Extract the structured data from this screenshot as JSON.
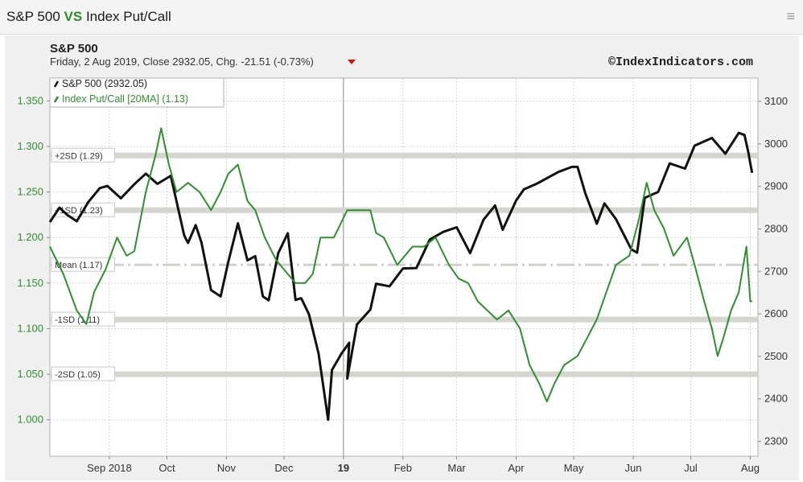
{
  "header": {
    "title_left": "S&P 500",
    "title_vs": "VS",
    "title_right": "Index Put/Call",
    "menu_icon": "hamburger-menu-icon"
  },
  "chart_header": {
    "symbol": "S&P 500",
    "info": "Friday, 2 Aug 2019, Close 2932.05, Chg. -21.51 (-0.73%)",
    "change_icon": "down-triangle-icon",
    "watermark": "©IndexIndicators.com"
  },
  "legend": [
    {
      "label": "S&P 500 (2932.05)",
      "color": "#111111"
    },
    {
      "label": "Index Put/Call [20MA] (1.13)",
      "color": "#2f8f2f"
    }
  ],
  "bands": [
    {
      "label": "+2SD (1.29)",
      "value": 1.29,
      "style": "band"
    },
    {
      "label": "+1SD (1.23)",
      "value": 1.23,
      "style": "band"
    },
    {
      "label": "Mean (1.17)",
      "value": 1.17,
      "style": "dashdot"
    },
    {
      "label": "-1SD (1.11)",
      "value": 1.11,
      "style": "band"
    },
    {
      "label": "-2SD (1.05)",
      "value": 1.05,
      "style": "band"
    }
  ],
  "chart_data": {
    "type": "line",
    "x_labels": [
      "Sep 2018",
      "Oct",
      "Nov",
      "Dec",
      "19",
      "Feb",
      "Mar",
      "Apr",
      "May",
      "Jun",
      "Jul",
      "Aug"
    ],
    "x_range": [
      "2018-08-01",
      "2019-08-05"
    ],
    "left_axis": {
      "ticks": [
        "1.350",
        "1.300",
        "1.250",
        "1.200",
        "1.150",
        "1.100",
        "1.050",
        "1.000"
      ],
      "range": [
        0.96,
        1.375
      ],
      "color": "#2f8f2f"
    },
    "right_axis": {
      "ticks": [
        "3100",
        "3000",
        "2900",
        "2800",
        "2700",
        "2600",
        "2500",
        "2400",
        "2300"
      ],
      "range": [
        2265,
        3155
      ],
      "color": "#333333"
    },
    "grid": true,
    "legend_position": "top-left",
    "series": [
      {
        "name": "S&P 500",
        "axis": "right",
        "color": "#111111",
        "points": [
          [
            "2018-08-01",
            2816
          ],
          [
            "2018-08-06",
            2850
          ],
          [
            "2018-08-10",
            2833
          ],
          [
            "2018-08-15",
            2818
          ],
          [
            "2018-08-21",
            2863
          ],
          [
            "2018-08-27",
            2896
          ],
          [
            "2018-08-31",
            2901
          ],
          [
            "2018-09-07",
            2872
          ],
          [
            "2018-09-14",
            2905
          ],
          [
            "2018-09-20",
            2930
          ],
          [
            "2018-09-26",
            2906
          ],
          [
            "2018-10-03",
            2925
          ],
          [
            "2018-10-05",
            2885
          ],
          [
            "2018-10-10",
            2785
          ],
          [
            "2018-10-12",
            2767
          ],
          [
            "2018-10-16",
            2809
          ],
          [
            "2018-10-19",
            2768
          ],
          [
            "2018-10-24",
            2656
          ],
          [
            "2018-10-29",
            2641
          ],
          [
            "2018-11-02",
            2723
          ],
          [
            "2018-11-07",
            2813
          ],
          [
            "2018-11-12",
            2726
          ],
          [
            "2018-11-16",
            2736
          ],
          [
            "2018-11-20",
            2641
          ],
          [
            "2018-11-23",
            2632
          ],
          [
            "2018-11-28",
            2743
          ],
          [
            "2018-12-03",
            2790
          ],
          [
            "2018-12-07",
            2633
          ],
          [
            "2018-12-10",
            2637
          ],
          [
            "2018-12-14",
            2599
          ],
          [
            "2018-12-19",
            2507
          ],
          [
            "2018-12-24",
            2351
          ],
          [
            "2018-12-26",
            2468
          ],
          [
            "2018-12-31",
            2507
          ],
          [
            "2019-01-04",
            2532
          ],
          [
            "2019-01-03",
            2448
          ],
          [
            "2019-01-08",
            2575
          ],
          [
            "2019-01-15",
            2610
          ],
          [
            "2019-01-18",
            2671
          ],
          [
            "2019-01-25",
            2665
          ],
          [
            "2019-02-01",
            2707
          ],
          [
            "2019-02-08",
            2708
          ],
          [
            "2019-02-15",
            2775
          ],
          [
            "2019-02-22",
            2793
          ],
          [
            "2019-03-01",
            2804
          ],
          [
            "2019-03-08",
            2743
          ],
          [
            "2019-03-15",
            2822
          ],
          [
            "2019-03-21",
            2855
          ],
          [
            "2019-03-25",
            2798
          ],
          [
            "2019-04-01",
            2867
          ],
          [
            "2019-04-05",
            2893
          ],
          [
            "2019-04-12",
            2907
          ],
          [
            "2019-04-23",
            2934
          ],
          [
            "2019-04-30",
            2946
          ],
          [
            "2019-05-03",
            2946
          ],
          [
            "2019-05-07",
            2884
          ],
          [
            "2019-05-13",
            2812
          ],
          [
            "2019-05-17",
            2860
          ],
          [
            "2019-05-23",
            2823
          ],
          [
            "2019-05-31",
            2752
          ],
          [
            "2019-06-03",
            2744
          ],
          [
            "2019-06-07",
            2873
          ],
          [
            "2019-06-14",
            2887
          ],
          [
            "2019-06-20",
            2954
          ],
          [
            "2019-06-28",
            2942
          ],
          [
            "2019-07-03",
            2996
          ],
          [
            "2019-07-12",
            3014
          ],
          [
            "2019-07-19",
            2977
          ],
          [
            "2019-07-26",
            3026
          ],
          [
            "2019-07-29",
            3021
          ],
          [
            "2019-07-31",
            2980
          ],
          [
            "2019-08-01",
            2954
          ],
          [
            "2019-08-02",
            2932
          ]
        ]
      },
      {
        "name": "Index Put/Call [20MA]",
        "axis": "left",
        "color": "#2f8f2f",
        "points": [
          [
            "2018-08-01",
            1.19
          ],
          [
            "2018-08-08",
            1.16
          ],
          [
            "2018-08-15",
            1.12
          ],
          [
            "2018-08-20",
            1.105
          ],
          [
            "2018-08-24",
            1.14
          ],
          [
            "2018-08-30",
            1.165
          ],
          [
            "2018-09-05",
            1.2
          ],
          [
            "2018-09-10",
            1.18
          ],
          [
            "2018-09-14",
            1.185
          ],
          [
            "2018-09-20",
            1.25
          ],
          [
            "2018-09-25",
            1.29
          ],
          [
            "2018-09-28",
            1.32
          ],
          [
            "2018-10-02",
            1.28
          ],
          [
            "2018-10-06",
            1.25
          ],
          [
            "2018-10-12",
            1.26
          ],
          [
            "2018-10-18",
            1.25
          ],
          [
            "2018-10-24",
            1.23
          ],
          [
            "2018-10-29",
            1.25
          ],
          [
            "2018-11-02",
            1.27
          ],
          [
            "2018-11-07",
            1.28
          ],
          [
            "2018-11-12",
            1.24
          ],
          [
            "2018-11-16",
            1.23
          ],
          [
            "2018-11-21",
            1.2
          ],
          [
            "2018-11-27",
            1.175
          ],
          [
            "2018-12-03",
            1.16
          ],
          [
            "2018-12-07",
            1.15
          ],
          [
            "2018-12-12",
            1.15
          ],
          [
            "2018-12-16",
            1.16
          ],
          [
            "2018-12-20",
            1.2
          ],
          [
            "2018-12-27",
            1.2
          ],
          [
            "2019-01-03",
            1.23
          ],
          [
            "2019-01-10",
            1.23
          ],
          [
            "2019-01-15",
            1.23
          ],
          [
            "2019-01-18",
            1.205
          ],
          [
            "2019-01-22",
            1.2
          ],
          [
            "2019-01-29",
            1.17
          ],
          [
            "2019-02-06",
            1.19
          ],
          [
            "2019-02-12",
            1.19
          ],
          [
            "2019-02-18",
            1.2
          ],
          [
            "2019-02-25",
            1.17
          ],
          [
            "2019-03-02",
            1.155
          ],
          [
            "2019-03-07",
            1.15
          ],
          [
            "2019-03-12",
            1.13
          ],
          [
            "2019-03-17",
            1.12
          ],
          [
            "2019-03-22",
            1.11
          ],
          [
            "2019-03-28",
            1.12
          ],
          [
            "2019-04-03",
            1.1
          ],
          [
            "2019-04-08",
            1.06
          ],
          [
            "2019-04-13",
            1.04
          ],
          [
            "2019-04-17",
            1.02
          ],
          [
            "2019-04-21",
            1.04
          ],
          [
            "2019-04-26",
            1.06
          ],
          [
            "2019-05-03",
            1.07
          ],
          [
            "2019-05-08",
            1.09
          ],
          [
            "2019-05-13",
            1.11
          ],
          [
            "2019-05-18",
            1.14
          ],
          [
            "2019-05-23",
            1.17
          ],
          [
            "2019-05-30",
            1.18
          ],
          [
            "2019-06-04",
            1.22
          ],
          [
            "2019-06-08",
            1.26
          ],
          [
            "2019-06-12",
            1.23
          ],
          [
            "2019-06-17",
            1.21
          ],
          [
            "2019-06-22",
            1.18
          ],
          [
            "2019-06-29",
            1.2
          ],
          [
            "2019-07-03",
            1.17
          ],
          [
            "2019-07-08",
            1.13
          ],
          [
            "2019-07-12",
            1.1
          ],
          [
            "2019-07-15",
            1.07
          ],
          [
            "2019-07-18",
            1.09
          ],
          [
            "2019-07-22",
            1.12
          ],
          [
            "2019-07-26",
            1.14
          ],
          [
            "2019-07-30",
            1.19
          ],
          [
            "2019-08-01",
            1.13
          ],
          [
            "2019-08-02",
            1.13
          ]
        ]
      }
    ]
  }
}
